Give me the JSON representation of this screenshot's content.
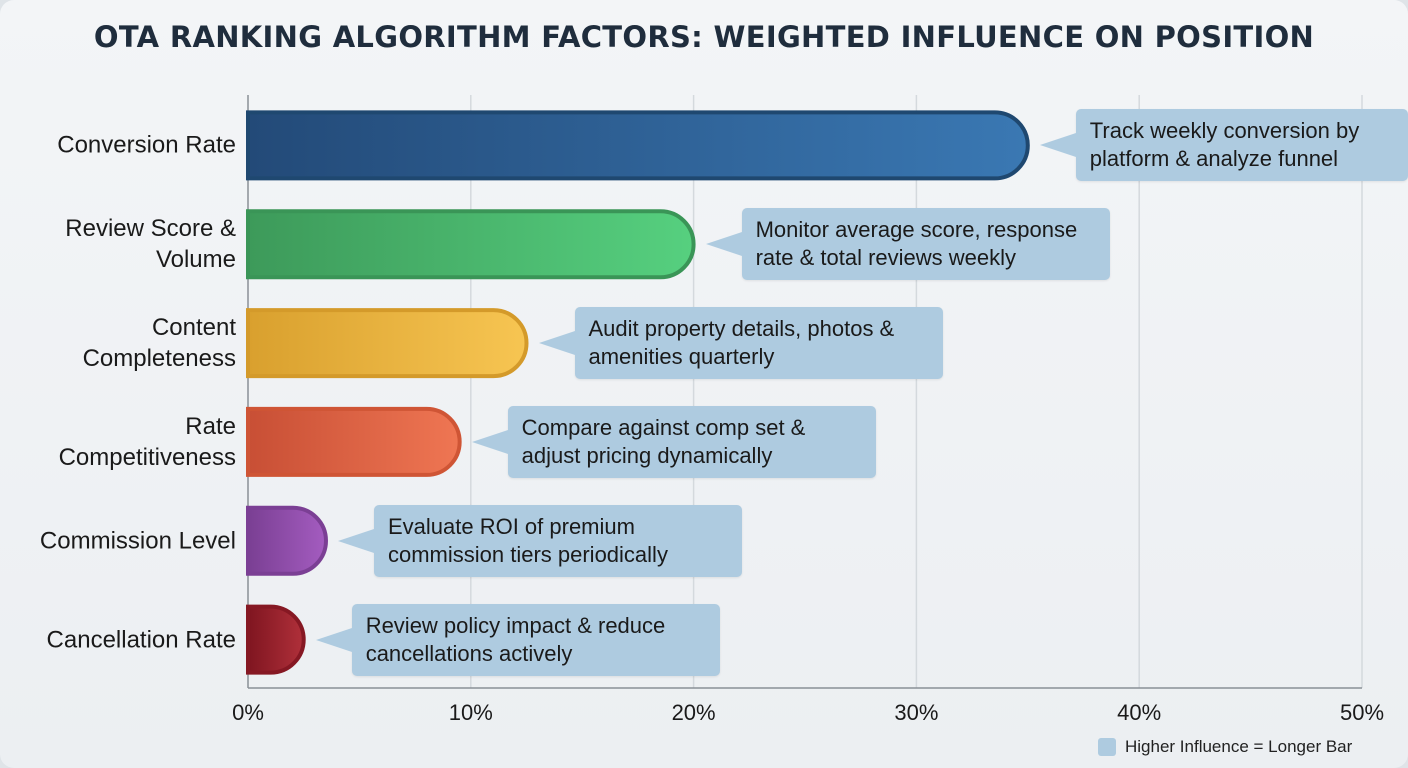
{
  "chart_data": {
    "type": "bar",
    "orientation": "horizontal",
    "title": "OTA RANKING ALGORITHM FACTORS: WEIGHTED INFLUENCE ON POSITION",
    "categories": [
      "Conversion Rate",
      "Review Score & Volume",
      "Content Completeness",
      "Rate Competitiveness",
      "Commission Level",
      "Cancellation Rate"
    ],
    "values": [
      35,
      20,
      12.5,
      9.5,
      3.5,
      2.5
    ],
    "annotations": [
      "Track weekly conversion by platform & analyze funnel",
      "Monitor average score, response rate & total reviews weekly",
      "Audit property details, photos & amenities quarterly",
      "Compare against comp set & adjust pricing dynamically",
      "Evaluate ROI of premium commission tiers periodically",
      "Review policy impact & reduce cancellations actively"
    ],
    "colors": [
      [
        "#234a78",
        "#3a78b3",
        "#1f4870"
      ],
      [
        "#3d9a5a",
        "#56d07f",
        "#3a9557"
      ],
      [
        "#d9a02e",
        "#f7c552",
        "#d49a2a"
      ],
      [
        "#c84f35",
        "#ef7653",
        "#cf5535"
      ],
      [
        "#7a3f93",
        "#a45cc0",
        "#7b3f94"
      ],
      [
        "#7f1520",
        "#b0303a",
        "#861823"
      ]
    ],
    "xlim": [
      0,
      50
    ],
    "xticks": [
      "0%",
      "10%",
      "20%",
      "30%",
      "40%",
      "50%"
    ],
    "grid": true,
    "legend": {
      "label": "Higher Influence = Longer Bar",
      "color": "#aecbe0",
      "placement": "bottom-right"
    }
  }
}
